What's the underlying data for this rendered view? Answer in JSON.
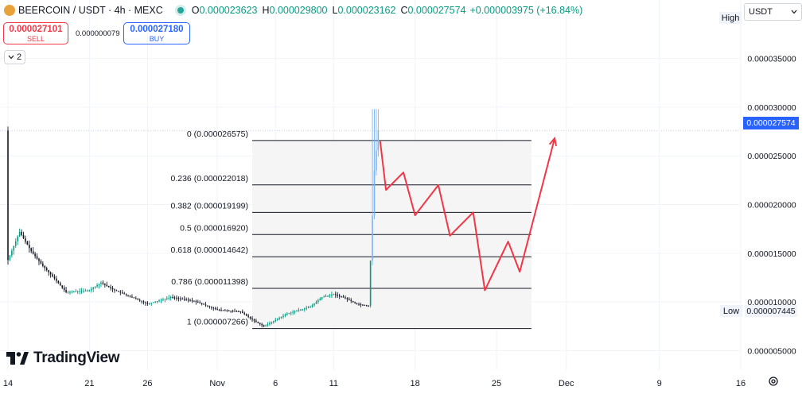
{
  "header": {
    "symbol": "BEERCOIN",
    "title": "BEERCOIN / USDT · 4h · MEXC",
    "open_label": "O",
    "open": "0.000023623",
    "high_label": "H",
    "high": "0.000029800",
    "low_label": "L",
    "low": "0.000023162",
    "close_label": "C",
    "close": "0.000027574",
    "change": "+0.000003975 (+16.84%)"
  },
  "trade": {
    "sell_price": "0.000027101",
    "sell_label": "SELL",
    "spread": "0.000000079",
    "buy_price": "0.000027180",
    "buy_label": "BUY"
  },
  "indicator_toggle": {
    "count": "2",
    "icon": "chevron-down-icon"
  },
  "currency_select": {
    "value": "USDT",
    "icon": "chevron-down-icon"
  },
  "high_marker_label": "High",
  "low_marker": {
    "label": "Low",
    "price": "0.000007445"
  },
  "last_price_label": "0.000027574",
  "logo_text": "TradingView",
  "colors": {
    "up": "#089981",
    "down": "#131722",
    "recent_candles": "#7fb3f0",
    "fib_line": "#131722",
    "fib_fill": "#f5f5f5",
    "projection": "#f23645",
    "accent": "#2962ff",
    "grid": "#f0f3fa"
  },
  "chart_data": {
    "type": "candlestick",
    "y_scale": "linear",
    "ylim": [
      3e-06,
      4.1e-05
    ],
    "y_ticks": [
      {
        "value": 5e-06,
        "label": "0.000005000"
      },
      {
        "value": 1e-05,
        "label": "0.000010000"
      },
      {
        "value": 1.5e-05,
        "label": "0.000015000"
      },
      {
        "value": 2e-05,
        "label": "0.000020000"
      },
      {
        "value": 2.5e-05,
        "label": "0.000025000"
      },
      {
        "value": 3e-05,
        "label": "0.000030000"
      },
      {
        "value": 3.5e-05,
        "label": "0.000035000"
      }
    ],
    "x_ticks": [
      {
        "date": "2024-10-14",
        "label": "14"
      },
      {
        "date": "2024-10-21",
        "label": "21"
      },
      {
        "date": "2024-10-26",
        "label": "26"
      },
      {
        "date": "2024-11-01",
        "label": "Nov"
      },
      {
        "date": "2024-11-06",
        "label": "6"
      },
      {
        "date": "2024-11-11",
        "label": "11"
      },
      {
        "date": "2024-11-18",
        "label": "18"
      },
      {
        "date": "2024-11-25",
        "label": "25"
      },
      {
        "date": "2024-12-01",
        "label": "Dec"
      },
      {
        "date": "2024-12-09",
        "label": "9"
      },
      {
        "date": "2024-12-16",
        "label": "16"
      }
    ],
    "price_path": [
      [
        "2024-10-14",
        1.43e-05
      ],
      [
        "2024-10-15",
        1.72e-05
      ],
      [
        "2024-10-16",
        1.52e-05
      ],
      [
        "2024-10-17",
        1.37e-05
      ],
      [
        "2024-10-18",
        1.24e-05
      ],
      [
        "2024-10-19",
        1.1e-05
      ],
      [
        "2024-10-21",
        1.12e-05
      ],
      [
        "2024-10-22",
        1.2e-05
      ],
      [
        "2024-10-23",
        1.13e-05
      ],
      [
        "2024-10-25",
        1.03e-05
      ],
      [
        "2024-10-26",
        9.8e-06
      ],
      [
        "2024-10-28",
        1.05e-05
      ],
      [
        "2024-10-30",
        1.01e-05
      ],
      [
        "2024-11-01",
        9.2e-06
      ],
      [
        "2024-11-03",
        9e-06
      ],
      [
        "2024-11-04",
        8.2e-06
      ],
      [
        "2024-11-05",
        7.5e-06
      ],
      [
        "2024-11-07",
        8.8e-06
      ],
      [
        "2024-11-09",
        9.5e-06
      ],
      [
        "2024-11-10",
        1.05e-05
      ],
      [
        "2024-11-11",
        1.08e-05
      ],
      [
        "2024-11-12",
        1.04e-05
      ],
      [
        "2024-11-13",
        9.8e-06
      ],
      [
        "2024-11-14",
        9.6e-06
      ],
      [
        "2024-11-14T12",
        2.35e-05
      ],
      [
        "2024-11-14T20",
        2.76e-05
      ]
    ],
    "spike_high": 2.98e-05,
    "fib_retracement": {
      "from_date": "2024-11-04",
      "to_date": "2024-11-28",
      "levels": [
        {
          "ratio": "0",
          "price": 2.6575e-05,
          "label": "0 (0.000026575)"
        },
        {
          "ratio": "0.236",
          "price": 2.2018e-05,
          "label": "0.236 (0.000022018)"
        },
        {
          "ratio": "0.382",
          "price": 1.9199e-05,
          "label": "0.382 (0.000019199)"
        },
        {
          "ratio": "0.5",
          "price": 1.692e-05,
          "label": "0.5 (0.000016920)"
        },
        {
          "ratio": "0.618",
          "price": 1.4642e-05,
          "label": "0.618 (0.000014642)"
        },
        {
          "ratio": "0.786",
          "price": 1.1398e-05,
          "label": "0.786 (0.000011398)"
        },
        {
          "ratio": "1",
          "price": 7.266e-06,
          "label": "1 (0.000007266)"
        }
      ]
    },
    "projection_path": [
      [
        "2024-11-15",
        2.65e-05
      ],
      [
        "2024-11-15T12",
        2.15e-05
      ],
      [
        "2024-11-17",
        2.33e-05
      ],
      [
        "2024-11-18",
        1.89e-05
      ],
      [
        "2024-11-20",
        2.2e-05
      ],
      [
        "2024-11-21",
        1.68e-05
      ],
      [
        "2024-11-23",
        1.92e-05
      ],
      [
        "2024-11-24",
        1.12e-05
      ],
      [
        "2024-11-26",
        1.62e-05
      ],
      [
        "2024-11-27",
        1.31e-05
      ],
      [
        "2024-11-30",
        2.68e-05
      ]
    ],
    "last_price": 2.7574e-05
  }
}
